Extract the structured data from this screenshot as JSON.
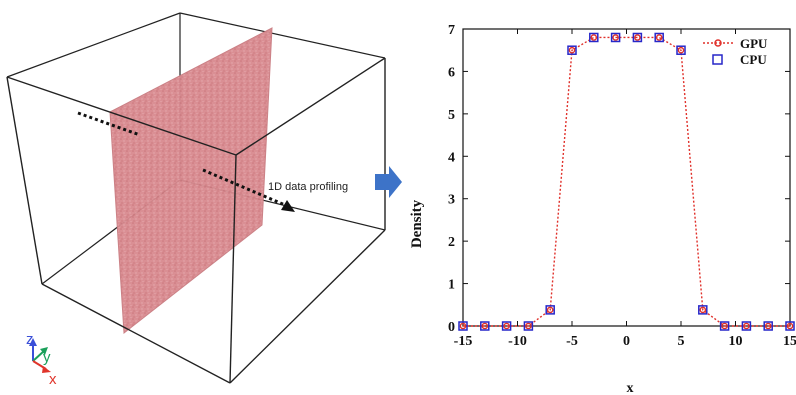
{
  "left_panel": {
    "annotation": "1D data profiling",
    "axes": {
      "z": "z",
      "y": "y",
      "x": "x"
    }
  },
  "colors": {
    "slab": "#d98a8f",
    "box_edges": "#222222",
    "arrow": "#3d73c8",
    "axis_z": "#3a4fd8",
    "axis_y": "#1aa05a",
    "axis_x": "#e0352b",
    "gpu": "#e0302a",
    "cpu": "#2727c9"
  },
  "chart_data": {
    "type": "line",
    "title": "",
    "xlabel": "x",
    "ylabel": "Density",
    "xlim": [
      -15,
      15
    ],
    "ylim": [
      0,
      7
    ],
    "xticks": [
      -15,
      -10,
      -5,
      0,
      5,
      10,
      15
    ],
    "yticks": [
      0,
      1,
      2,
      3,
      4,
      5,
      6,
      7
    ],
    "grid": false,
    "legend_position": "top-right",
    "x": [
      -15,
      -13,
      -11,
      -9,
      -7,
      -5,
      -3,
      -1,
      1,
      3,
      5,
      7,
      9,
      11,
      13,
      15
    ],
    "series": [
      {
        "name": "GPU",
        "style": "dotted line with small circle markers",
        "values": [
          0,
          0,
          0,
          0,
          0.38,
          6.5,
          6.8,
          6.8,
          6.8,
          6.8,
          6.5,
          0.38,
          0,
          0,
          0,
          0
        ]
      },
      {
        "name": "CPU",
        "style": "open square markers",
        "values": [
          0,
          0,
          0,
          0,
          0.38,
          6.5,
          6.8,
          6.8,
          6.8,
          6.8,
          6.5,
          0.38,
          0,
          0,
          0,
          0
        ]
      }
    ]
  }
}
